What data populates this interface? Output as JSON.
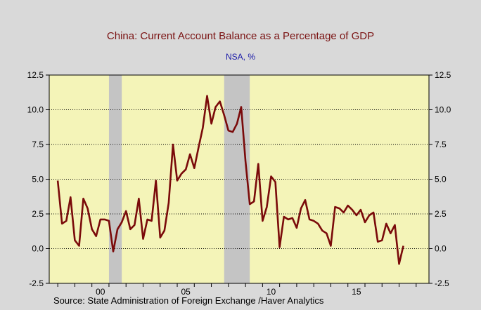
{
  "chart_data": {
    "type": "line",
    "title": "China: Current Account Balance as a Percentage of GDP",
    "subtitle": "NSA, %",
    "source": "Source:   State Administration of Foreign Exchange /Haver Analytics",
    "xlim": [
      1997.5,
      2019.75
    ],
    "ylim": [
      -2.5,
      12.5
    ],
    "y_ticks": [
      -2.5,
      0.0,
      2.5,
      5.0,
      7.5,
      10.0,
      12.5
    ],
    "y_tick_labels": [
      "-2.5",
      "0.0",
      "2.5",
      "5.0",
      "7.5",
      "10.0",
      "12.5"
    ],
    "y_axis_both_sides": true,
    "x_ticks": [
      2000,
      2005,
      2010,
      2015
    ],
    "x_tick_labels": [
      "00",
      "05",
      "10",
      "15"
    ],
    "grid": "horizontal dashed",
    "colors": {
      "plot_background": "#f4f4b8",
      "page_background": "#d9d9d9",
      "series": "#7a0a0a",
      "recession": "#c4c4c4"
    },
    "recession_bands": [
      [
        2001.0,
        2001.75
      ],
      [
        2007.75,
        2009.25
      ]
    ],
    "series": [
      {
        "points": [
          [
            1998.0,
            4.9
          ],
          [
            1998.25,
            1.8
          ],
          [
            1998.5,
            2.0
          ],
          [
            1998.75,
            3.7
          ],
          [
            1999.0,
            0.6
          ],
          [
            1999.25,
            0.2
          ],
          [
            1999.5,
            3.6
          ],
          [
            1999.75,
            2.9
          ],
          [
            2000.0,
            1.4
          ],
          [
            2000.25,
            0.9
          ],
          [
            2000.5,
            2.1
          ],
          [
            2000.75,
            2.1
          ],
          [
            2001.0,
            2.0
          ],
          [
            2001.25,
            -0.2
          ],
          [
            2001.5,
            1.4
          ],
          [
            2001.75,
            1.9
          ],
          [
            2002.0,
            2.7
          ],
          [
            2002.25,
            1.4
          ],
          [
            2002.5,
            1.7
          ],
          [
            2002.75,
            3.6
          ],
          [
            2003.0,
            0.7
          ],
          [
            2003.25,
            2.1
          ],
          [
            2003.5,
            2.0
          ],
          [
            2003.75,
            4.9
          ],
          [
            2004.0,
            0.8
          ],
          [
            2004.25,
            1.3
          ],
          [
            2004.5,
            3.3
          ],
          [
            2004.75,
            7.5
          ],
          [
            2005.0,
            4.9
          ],
          [
            2005.25,
            5.4
          ],
          [
            2005.5,
            5.7
          ],
          [
            2005.75,
            6.8
          ],
          [
            2006.0,
            5.8
          ],
          [
            2006.25,
            7.3
          ],
          [
            2006.5,
            8.7
          ],
          [
            2006.75,
            11.0
          ],
          [
            2007.0,
            9.0
          ],
          [
            2007.25,
            10.2
          ],
          [
            2007.5,
            10.6
          ],
          [
            2007.75,
            9.6
          ],
          [
            2008.0,
            8.5
          ],
          [
            2008.25,
            8.4
          ],
          [
            2008.5,
            9.0
          ],
          [
            2008.75,
            10.2
          ],
          [
            2009.0,
            6.3
          ],
          [
            2009.25,
            3.2
          ],
          [
            2009.5,
            3.4
          ],
          [
            2009.75,
            6.1
          ],
          [
            2010.0,
            2.0
          ],
          [
            2010.25,
            3.0
          ],
          [
            2010.5,
            5.2
          ],
          [
            2010.75,
            4.8
          ],
          [
            2011.0,
            0.1
          ],
          [
            2011.25,
            2.3
          ],
          [
            2011.5,
            2.1
          ],
          [
            2011.75,
            2.2
          ],
          [
            2012.0,
            1.5
          ],
          [
            2012.25,
            2.9
          ],
          [
            2012.5,
            3.5
          ],
          [
            2012.75,
            2.1
          ],
          [
            2013.0,
            2.0
          ],
          [
            2013.25,
            1.8
          ],
          [
            2013.5,
            1.3
          ],
          [
            2013.75,
            1.1
          ],
          [
            2014.0,
            0.2
          ],
          [
            2014.25,
            3.0
          ],
          [
            2014.5,
            2.9
          ],
          [
            2014.75,
            2.6
          ],
          [
            2015.0,
            3.1
          ],
          [
            2015.25,
            2.8
          ],
          [
            2015.5,
            2.4
          ],
          [
            2015.75,
            2.8
          ],
          [
            2016.0,
            1.9
          ],
          [
            2016.25,
            2.4
          ],
          [
            2016.5,
            2.6
          ],
          [
            2016.75,
            0.5
          ],
          [
            2017.0,
            0.6
          ],
          [
            2017.25,
            1.8
          ],
          [
            2017.5,
            1.1
          ],
          [
            2017.75,
            1.7
          ],
          [
            2018.0,
            -1.1
          ],
          [
            2018.25,
            0.2
          ]
        ]
      }
    ]
  }
}
